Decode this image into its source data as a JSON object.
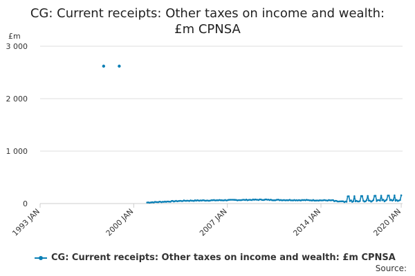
{
  "title_line1": "CG: Current receipts: Other taxes on income and wealth:",
  "title_line2": "£m CPNSA",
  "source_label": "Source:",
  "colors": {
    "series": "#0a7fb5",
    "grid": "#dcdcdc",
    "axis": "#cccccc",
    "text": "#333333"
  },
  "chart_data": {
    "type": "line",
    "title": "CG: Current receipts: Other taxes on income and wealth: £m CPNSA",
    "xlabel": "",
    "ylabel": "£m",
    "x_tick_labels": [
      "1993 JAN",
      "2000 JAN",
      "2007 JAN",
      "2014 JAN",
      "2020 JAN"
    ],
    "x_tick_years": [
      1993,
      2000,
      2007,
      2014,
      2020
    ],
    "xlim": [
      1993,
      2020.1
    ],
    "y_tick_labels": [
      "0",
      "1 000",
      "2 000",
      "3 000"
    ],
    "y_ticks": [
      0,
      1000,
      2000,
      3000
    ],
    "ylim": [
      0,
      3000
    ],
    "grid": true,
    "legend_position": "bottom",
    "series": [
      {
        "name": "CG: Current receipts: Other taxes on income and wealth: £m CPNSA",
        "color": "#0a7fb5",
        "isolated_points": [
          {
            "x": "1997 OCT",
            "y": 2620
          },
          {
            "x": "1998 DEC",
            "y": 2620
          }
        ],
        "monthly_start": "2001 JAN",
        "monthly_end": "2020 JAN",
        "segments": [
          {
            "from": "2001 JAN",
            "to": "2003 DEC",
            "start": 20,
            "end": 55,
            "range": 15
          },
          {
            "from": "2004 JAN",
            "to": "2009 DEC",
            "start": 55,
            "end": 75,
            "range": 15
          },
          {
            "from": "2010 JAN",
            "to": "2014 DEC",
            "start": 70,
            "end": 60,
            "range": 15
          },
          {
            "from": "2015 JAN",
            "to": "2015 AUG",
            "start": 45,
            "end": 35,
            "range": 20
          },
          {
            "from": "2015 SEP",
            "to": "2020 JAN",
            "start": 60,
            "end": 80,
            "range": 110
          }
        ]
      }
    ]
  }
}
